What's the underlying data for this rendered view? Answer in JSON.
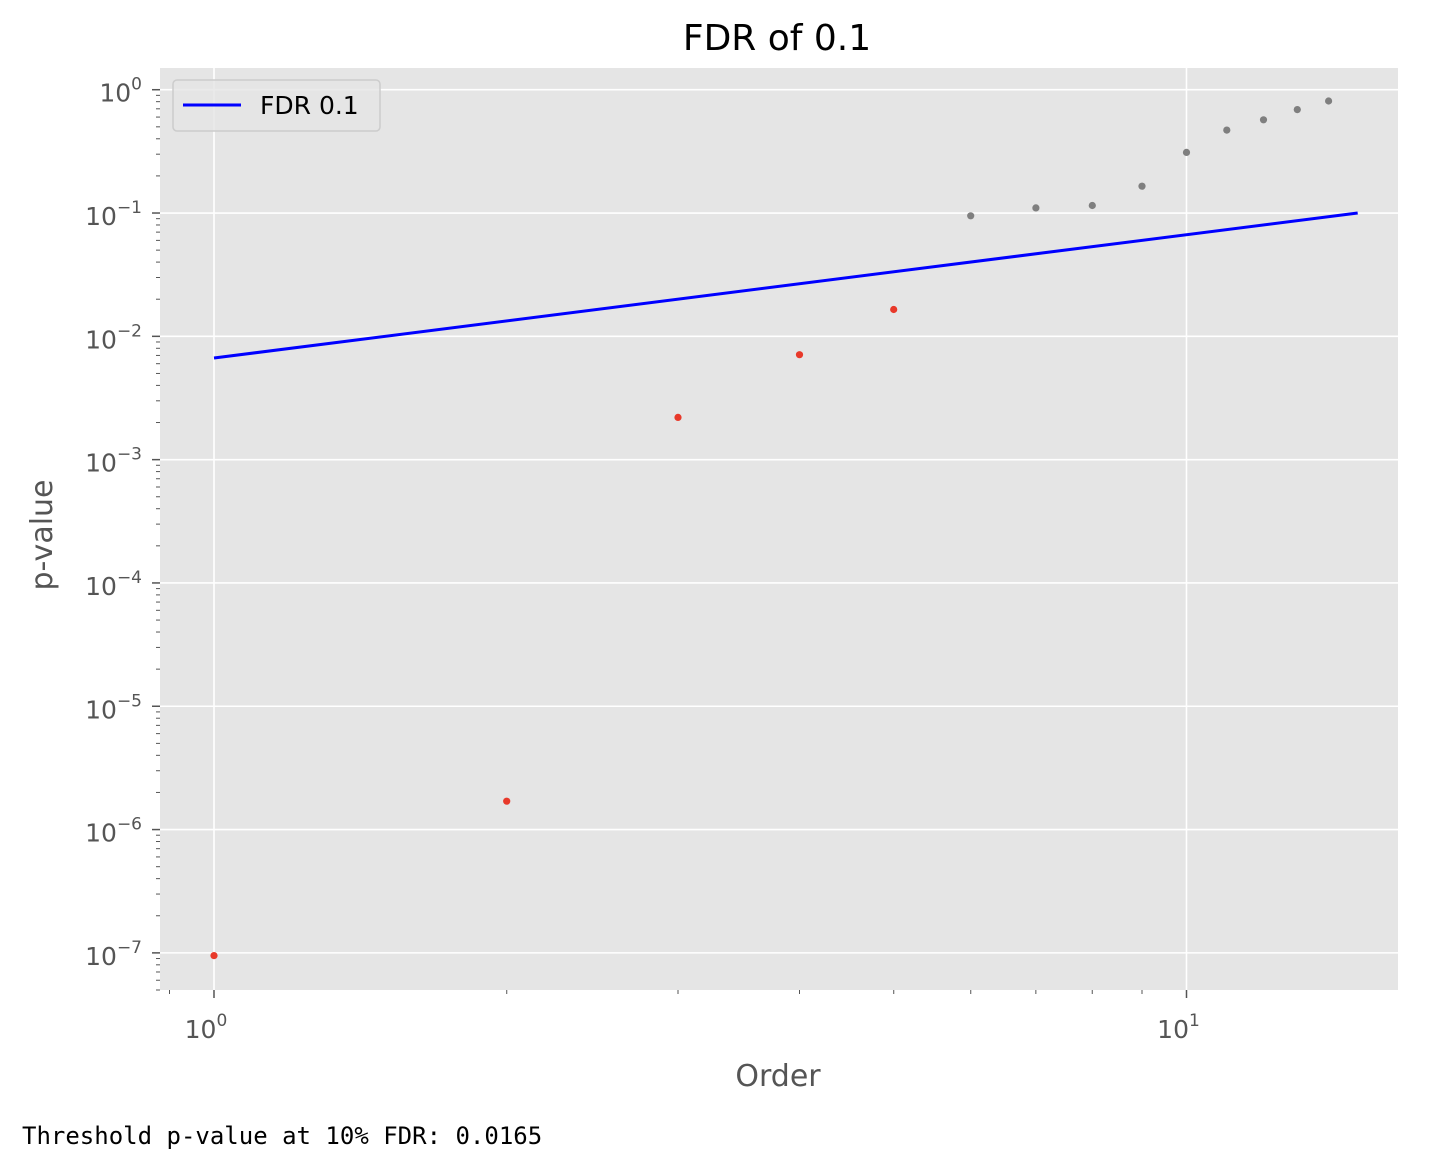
{
  "chart_data": {
    "type": "scatter",
    "title": "FDR of 0.1",
    "xlabel": "Order",
    "ylabel": "p-value",
    "xscale": "log",
    "yscale": "log",
    "xlim": [
      0.88,
      16.5
    ],
    "ylim": [
      5e-08,
      1.5
    ],
    "grid": true,
    "legend_position": "top-left",
    "x_ticks": [
      {
        "base": "10",
        "exp": "0",
        "value": 1
      },
      {
        "base": "10",
        "exp": "1",
        "value": 10
      }
    ],
    "y_ticks": [
      {
        "base": "10",
        "exp": "0",
        "value": 1
      },
      {
        "base": "10",
        "exp": "−1",
        "value": 0.1
      },
      {
        "base": "10",
        "exp": "−2",
        "value": 0.01
      },
      {
        "base": "10",
        "exp": "−3",
        "value": 0.001
      },
      {
        "base": "10",
        "exp": "−4",
        "value": 0.0001
      },
      {
        "base": "10",
        "exp": "−5",
        "value": 1e-05
      },
      {
        "base": "10",
        "exp": "−6",
        "value": 1e-06
      },
      {
        "base": "10",
        "exp": "−7",
        "value": 1e-07
      }
    ],
    "line": {
      "name": "FDR 0.1",
      "color": "#0000ff",
      "x": [
        1,
        15
      ],
      "y": [
        0.00667,
        0.1
      ]
    },
    "points": [
      {
        "x": 1,
        "y": 9.5e-08,
        "significant": true
      },
      {
        "x": 2,
        "y": 1.7e-06,
        "significant": true
      },
      {
        "x": 3,
        "y": 0.0022,
        "significant": true
      },
      {
        "x": 4,
        "y": 0.0071,
        "significant": true
      },
      {
        "x": 5,
        "y": 0.0165,
        "significant": true
      },
      {
        "x": 6,
        "y": 0.095,
        "significant": false
      },
      {
        "x": 7,
        "y": 0.11,
        "significant": false
      },
      {
        "x": 8,
        "y": 0.115,
        "significant": false
      },
      {
        "x": 9,
        "y": 0.165,
        "significant": false
      },
      {
        "x": 10,
        "y": 0.31,
        "significant": false
      },
      {
        "x": 11,
        "y": 0.47,
        "significant": false
      },
      {
        "x": 12,
        "y": 0.57,
        "significant": false
      },
      {
        "x": 13,
        "y": 0.69,
        "significant": false
      },
      {
        "x": 14,
        "y": 0.81,
        "significant": false
      }
    ],
    "colors": {
      "significant": "#e8392a",
      "not_significant": "#7f7f7f",
      "background": "#e5e5e5",
      "grid": "#ffffff"
    }
  },
  "caption": "Threshold p-value at 10% FDR: 0.0165"
}
